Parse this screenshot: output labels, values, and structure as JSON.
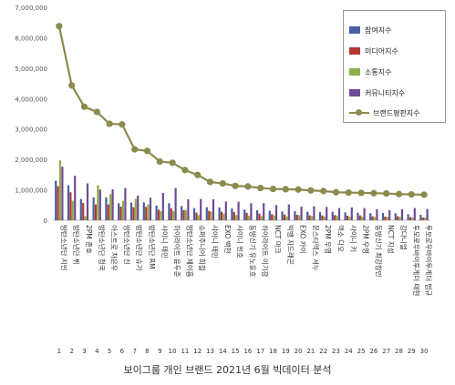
{
  "caption": "보이그룹 개인 브랜드 2021년 6월 빅데이터 분석",
  "colors": {
    "participation": "#4a5fa0",
    "media": "#b23a32",
    "communication": "#8fae46",
    "community": "#6f4a96",
    "brand": "#8b8b4e"
  },
  "chart_data": {
    "type": "bar",
    "title": "",
    "xlabel": "",
    "ylabel": "",
    "ylim": [
      0,
      7000000
    ],
    "yticks": [
      "0",
      "1,000,000",
      "2,000,000",
      "3,000,000",
      "4,000,000",
      "5,000,000",
      "6,000,000",
      "7,000,000"
    ],
    "grid": false,
    "legend_placement": "top-right",
    "categories": [
      "1",
      "2",
      "3",
      "4",
      "5",
      "6",
      "7",
      "8",
      "9",
      "10",
      "11",
      "12",
      "13",
      "14",
      "15",
      "16",
      "17",
      "18",
      "19",
      "20",
      "21",
      "22",
      "23",
      "24",
      "25",
      "26",
      "27",
      "28",
      "29",
      "30"
    ],
    "names": [
      "방탄소년단 지민",
      "방탄소년단 뷔",
      "2PM 준호",
      "방탄소년단 정국",
      "아스트로 차은우",
      "방탄소년단 진",
      "방탄소년단 슈가",
      "방탄소년단 RM",
      "샤이니 태민",
      "하이라이트 윤두준",
      "방탄소년단 제이홉",
      "슈퍼주니어 희철",
      "샤이니 태민",
      "EXO 백현",
      "샤이니 민호",
      "동방신기 유노윤호",
      "하이라이트 이기광",
      "NCT 마크",
      "빅뱅 지드래곤",
      "EXO 카이",
      "몬스타엑스 셔누",
      "2PM 우영",
      "엑소 디오",
      "샤이니 키",
      "2PM 우영",
      "동방신기 최강창민",
      "NCT 지성",
      "강다니엘",
      "투모로우바이투게더 태현",
      "투모로우바이투게더 범규"
    ],
    "series": [
      {
        "name": "참여지수",
        "type": "bar",
        "values": [
          1300000,
          1150000,
          700000,
          750000,
          750000,
          560000,
          580000,
          590000,
          480000,
          560000,
          470000,
          400000,
          430000,
          420000,
          390000,
          350000,
          330000,
          310000,
          290000,
          300000,
          280000,
          270000,
          280000,
          260000,
          250000,
          230000,
          240000,
          230000,
          200000,
          180000
        ]
      },
      {
        "name": "미디어지수",
        "type": "bar",
        "values": [
          1120000,
          920000,
          570000,
          520000,
          520000,
          450000,
          430000,
          440000,
          350000,
          390000,
          330000,
          250000,
          310000,
          280000,
          270000,
          240000,
          220000,
          200000,
          190000,
          180000,
          160000,
          160000,
          170000,
          150000,
          160000,
          130000,
          120000,
          130000,
          100000,
          90000
        ]
      },
      {
        "name": "소통지수",
        "type": "bar",
        "values": [
          1970000,
          640000,
          130000,
          1150000,
          860000,
          640000,
          700000,
          520000,
          300000,
          300000,
          340000,
          170000,
          280000,
          220000,
          170000,
          150000,
          140000,
          160000,
          130000,
          170000,
          140000,
          120000,
          140000,
          120000,
          120000,
          110000,
          110000,
          110000,
          90000,
          90000
        ]
      },
      {
        "name": "커뮤니티지수",
        "type": "bar",
        "values": [
          1760000,
          1460000,
          1210000,
          1010000,
          1020000,
          1060000,
          810000,
          740000,
          900000,
          1060000,
          690000,
          700000,
          690000,
          620000,
          610000,
          560000,
          560000,
          500000,
          520000,
          450000,
          460000,
          440000,
          400000,
          420000,
          400000,
          360000,
          330000,
          360000,
          400000,
          370000
        ]
      },
      {
        "name": "브랜드평판지수",
        "type": "line",
        "values": [
          6380000,
          4430000,
          3730000,
          3560000,
          3170000,
          3150000,
          2330000,
          2280000,
          1930000,
          1890000,
          1650000,
          1490000,
          1260000,
          1210000,
          1130000,
          1110000,
          1060000,
          1030000,
          1020000,
          1010000,
          980000,
          960000,
          920000,
          910000,
          900000,
          890000,
          880000,
          860000,
          850000,
          840000
        ]
      }
    ]
  }
}
